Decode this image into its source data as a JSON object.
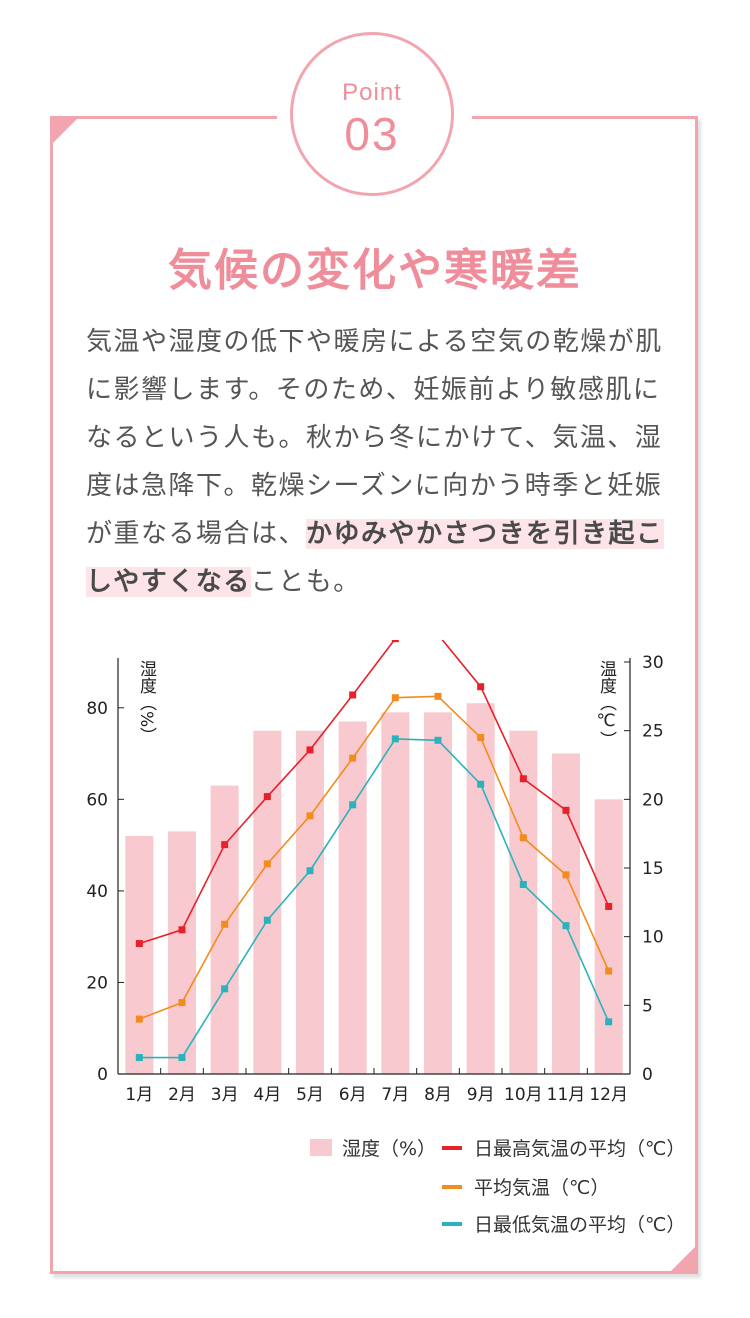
{
  "badge": {
    "point_label": "Point",
    "number": "03"
  },
  "title": "気候の変化や寒暖差",
  "body": {
    "text_before": "気温や湿度の低下や暖房による空気の乾燥が肌に影響します。そのため、妊娠前より敏感肌になるという人も。秋から冬にかけて、気温、湿度は急降下。乾燥シーズンに向かう時季と妊娠が重なる場合は、",
    "highlight": "かゆみやかさつきを引き起こしやすくなる",
    "text_after": "ことも。"
  },
  "colors": {
    "accent_pink": "#ef8e9a",
    "border_pink": "#f2a5ae",
    "humidity_bar": "#f8c9cf",
    "max_temp": "#e8202a",
    "avg_temp": "#f28c1e",
    "min_temp": "#2bb3bd"
  },
  "chart_data": {
    "type": "bar",
    "categories": [
      "1月",
      "2月",
      "3月",
      "4月",
      "5月",
      "6月",
      "7月",
      "8月",
      "9月",
      "10月",
      "11月",
      "12月"
    ],
    "y_left": {
      "label": "湿度（%）",
      "ylim": [
        0,
        90
      ],
      "ticks": [
        0,
        20,
        40,
        60,
        80
      ]
    },
    "y_right": {
      "label": "温度（℃）",
      "ylim": [
        0,
        30
      ],
      "ticks": [
        0,
        5,
        10,
        15,
        20,
        25,
        30
      ]
    },
    "bars": {
      "name": "湿度（%）",
      "axis": "left",
      "values": [
        52,
        53,
        63,
        75,
        75,
        77,
        79,
        79,
        81,
        75,
        70,
        60
      ]
    },
    "series": [
      {
        "name": "日最高気温の平均（℃）",
        "axis": "right",
        "type": "line",
        "values": [
          9.5,
          10.5,
          16.7,
          20.2,
          23.6,
          27.6,
          31.7,
          32.0,
          28.2,
          21.5,
          19.2,
          12.2
        ]
      },
      {
        "name": "平均気温（℃）",
        "axis": "right",
        "type": "line",
        "values": [
          4.0,
          5.2,
          10.9,
          15.3,
          18.8,
          23.0,
          27.4,
          27.5,
          24.5,
          17.2,
          14.5,
          7.5
        ]
      },
      {
        "name": "日最低気温の平均（℃）",
        "axis": "right",
        "type": "line",
        "values": [
          1.2,
          1.2,
          6.2,
          11.2,
          14.8,
          19.6,
          24.4,
          24.3,
          21.1,
          13.8,
          10.8,
          3.8
        ]
      }
    ],
    "legend": "bottom-right",
    "grid": false
  }
}
